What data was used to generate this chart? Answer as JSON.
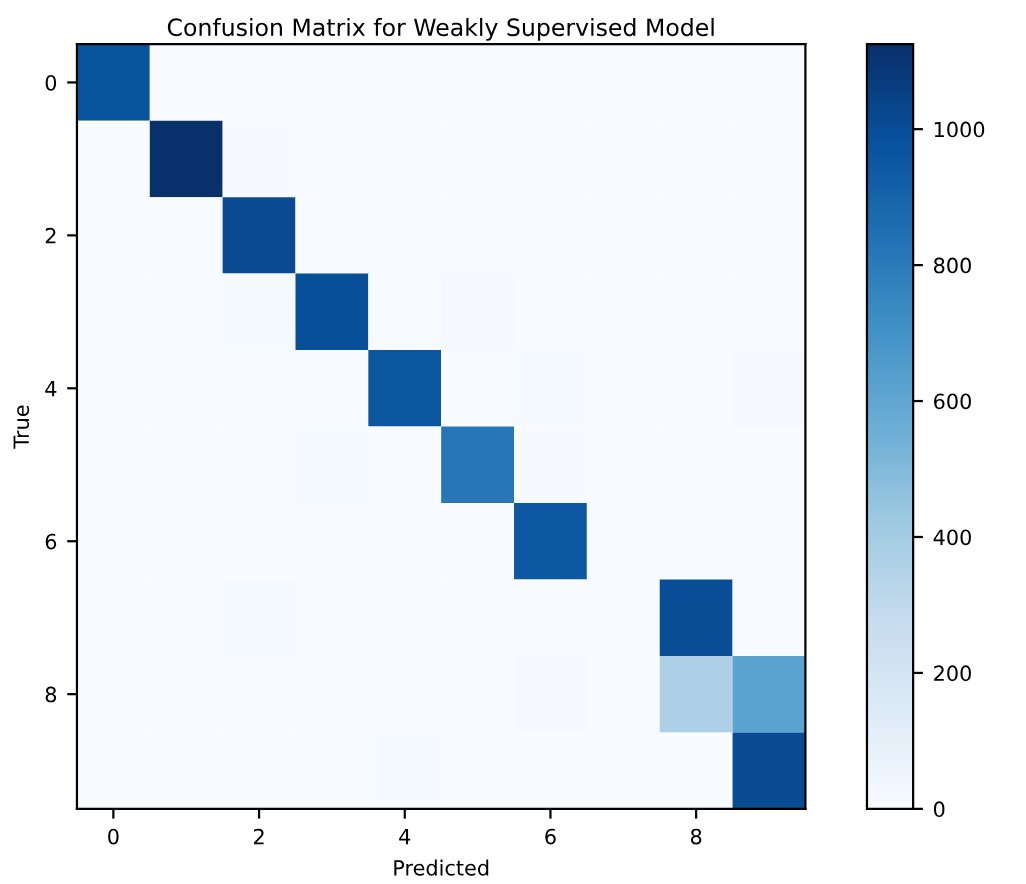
{
  "chart_data": {
    "type": "heatmap",
    "title": "Confusion Matrix for Weakly Supervised Model",
    "xlabel": "Predicted",
    "ylabel": "True",
    "categories": [
      "0",
      null,
      "2",
      null,
      "4",
      null,
      "6",
      null,
      "8",
      null
    ],
    "y_categories": [
      "0",
      null,
      "2",
      null,
      "4",
      null,
      "6",
      null,
      "8",
      null
    ],
    "cells": [
      [
        970,
        0,
        0,
        0,
        0,
        0,
        0,
        0,
        0,
        0
      ],
      [
        0,
        1125,
        5,
        0,
        0,
        0,
        0,
        0,
        0,
        0
      ],
      [
        0,
        0,
        1010,
        0,
        0,
        0,
        0,
        0,
        0,
        0
      ],
      [
        0,
        0,
        10,
        990,
        0,
        15,
        0,
        0,
        0,
        0
      ],
      [
        0,
        0,
        0,
        0,
        960,
        0,
        10,
        0,
        0,
        15
      ],
      [
        0,
        0,
        0,
        10,
        0,
        820,
        5,
        0,
        0,
        0
      ],
      [
        0,
        0,
        0,
        0,
        0,
        0,
        950,
        0,
        0,
        0
      ],
      [
        0,
        0,
        20,
        0,
        0,
        0,
        0,
        0,
        1000,
        0
      ],
      [
        0,
        0,
        0,
        0,
        0,
        0,
        15,
        0,
        370,
        620
      ],
      [
        0,
        0,
        0,
        0,
        10,
        0,
        0,
        0,
        0,
        1010
      ]
    ],
    "clim": [
      0,
      1125
    ],
    "cticks": [
      0,
      200,
      400,
      600,
      800,
      1000
    ]
  }
}
